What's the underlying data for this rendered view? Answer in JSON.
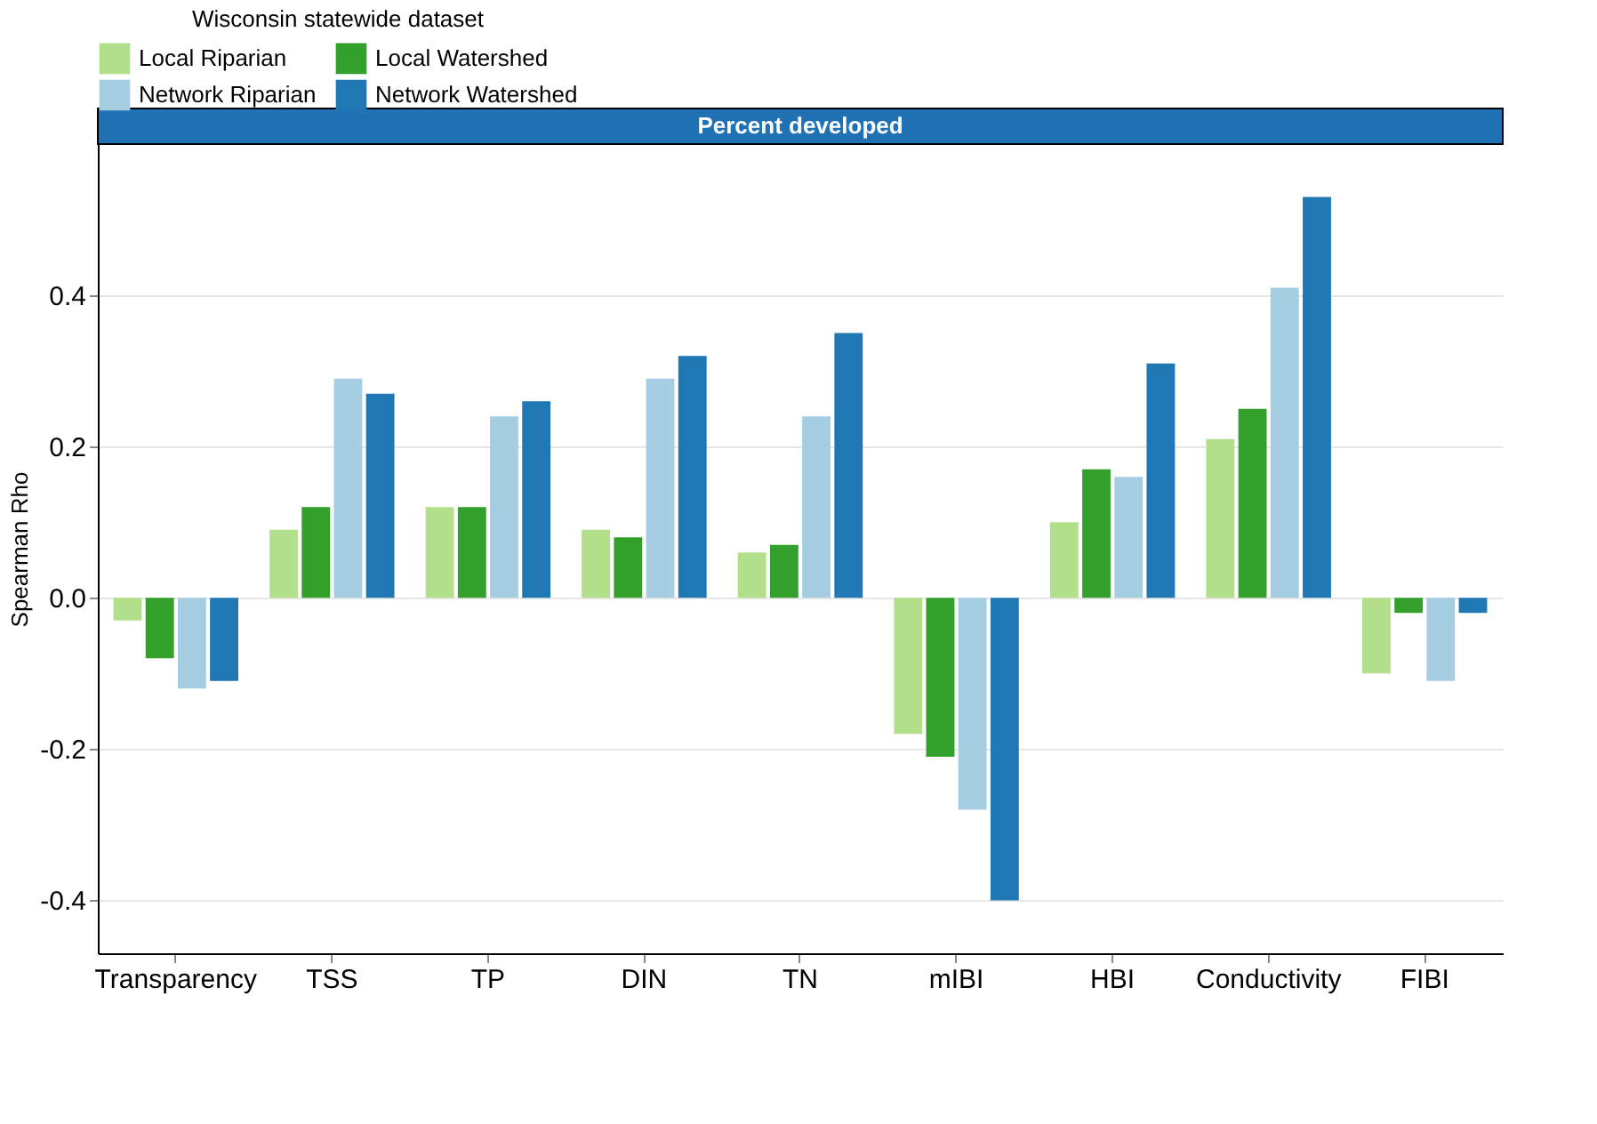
{
  "chart_data": {
    "type": "bar",
    "title": "Percent developed",
    "ylabel": "Spearman Rho",
    "legend_title": "Wisconsin statewide dataset",
    "categories": [
      "Transparency",
      "TSS",
      "TP",
      "DIN",
      "TN",
      "mIBI",
      "HBI",
      "Conductivity",
      "FIBI"
    ],
    "series": [
      {
        "name": "Local Riparian",
        "color": "#b2df8a",
        "values": [
          -0.03,
          0.09,
          0.12,
          0.09,
          0.06,
          -0.18,
          0.1,
          0.21,
          -0.1
        ]
      },
      {
        "name": "Local Watershed",
        "color": "#33a02c",
        "values": [
          -0.08,
          0.12,
          0.12,
          0.08,
          0.07,
          -0.21,
          0.17,
          0.25,
          -0.02
        ]
      },
      {
        "name": "Network Riparian",
        "color": "#a6cee3",
        "values": [
          -0.12,
          0.29,
          0.24,
          0.29,
          0.24,
          -0.28,
          0.16,
          0.41,
          -0.11
        ]
      },
      {
        "name": "Network Watershed",
        "color": "#1f78b4",
        "values": [
          -0.11,
          0.27,
          0.26,
          0.32,
          0.35,
          -0.4,
          0.31,
          0.53,
          -0.02
        ]
      }
    ],
    "ylim": [
      -0.47,
      0.6
    ],
    "yticks": [
      {
        "value": -0.4,
        "label": "-0.4"
      },
      {
        "value": -0.2,
        "label": "-0.2"
      },
      {
        "value": 0,
        "label": "0.0"
      },
      {
        "value": 0.2,
        "label": "0.2"
      },
      {
        "value": 0.4,
        "label": "0.4"
      }
    ],
    "grid": "y",
    "legend": "top"
  }
}
